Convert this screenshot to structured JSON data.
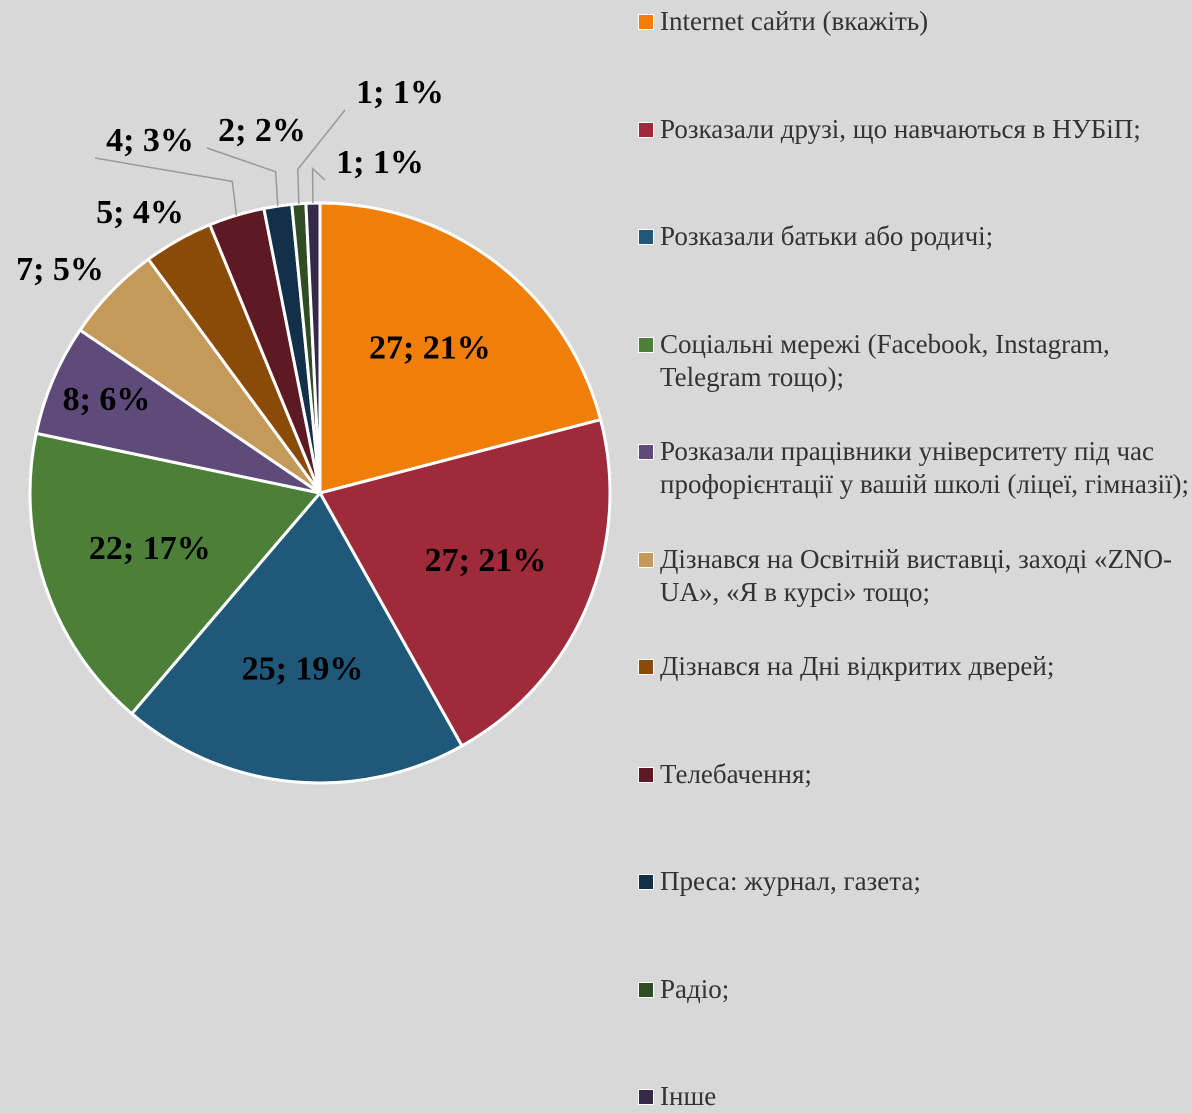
{
  "chart_data": {
    "type": "pie",
    "categories": [
      "Internet сайти (вкажіть)",
      "Розказали друзі, що навчаються в НУБіП;",
      "Розказали батьки або родичі;",
      "Соціальні мережі (Facebook, Instagram, Telegram тощо);",
      "Розказали працівники університету під час профорієнтації у вашій школі (ліцеї, гімназії);",
      "Дізнався на Освітній виставці, заході «ZNO-UA», «Я в курсі» тощо;",
      "Дізнався на Дні відкритих дверей;",
      "Телебачення;",
      "Преса: журнал, газета;",
      "Радіо;",
      "Інше"
    ],
    "values": [
      27,
      27,
      25,
      22,
      8,
      7,
      5,
      4,
      2,
      1,
      1
    ],
    "value_labels": [
      "27; 21%",
      "27; 21%",
      "25; 19%",
      "22; 17%",
      "8; 6%",
      "7; 5%",
      "5; 4%",
      "4; 3%",
      "2; 2%",
      "1; 1%",
      "1; 1%"
    ],
    "colors": [
      "#f07f09",
      "#9e2a3a",
      "#1f5878",
      "#4c8039",
      "#5e4b7a",
      "#c49a5a",
      "#8a4a08",
      "#5e1a22",
      "#12304a",
      "#2f4d22",
      "#362a4a"
    ],
    "legend": "right"
  }
}
